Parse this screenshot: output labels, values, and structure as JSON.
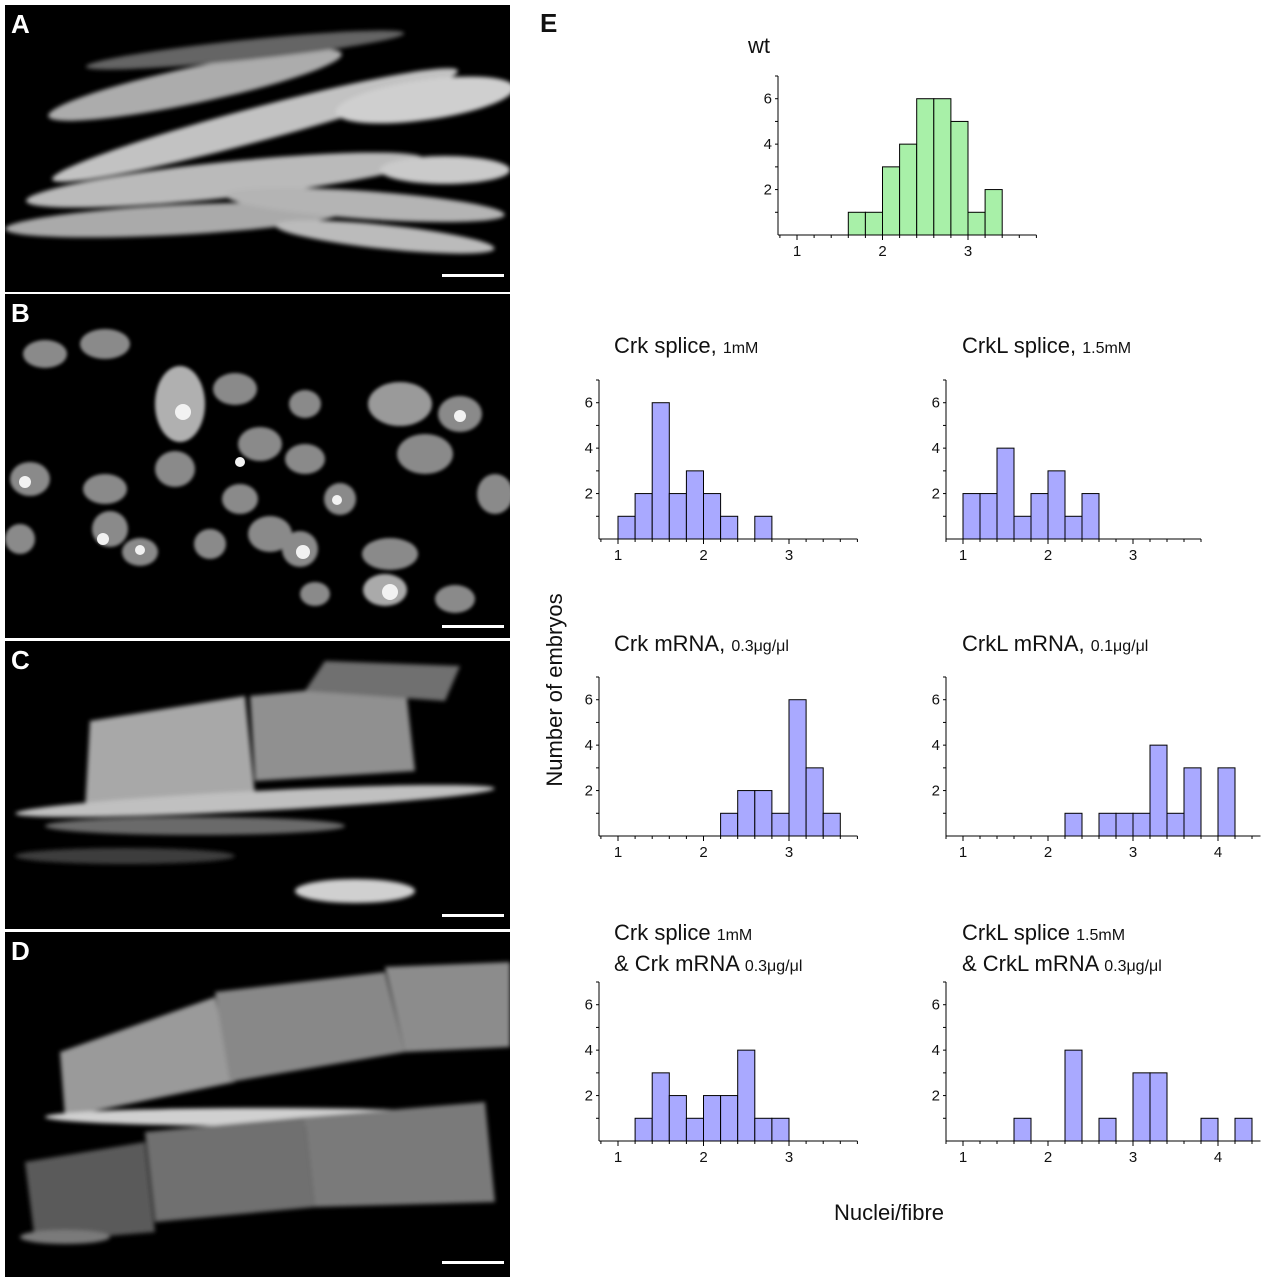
{
  "panels": [
    {
      "letter": "A"
    },
    {
      "letter": "B"
    },
    {
      "letter": "C"
    },
    {
      "letter": "D"
    },
    {
      "letter": "E"
    }
  ],
  "axis": {
    "xlabel": "Nuclei/fibre",
    "ylabel": "Number of embryos"
  },
  "colors": {
    "wt": "#a8f0a8",
    "treated": "#a9a9ff",
    "edge": "#000000"
  },
  "chart_data": [
    {
      "type": "bar",
      "id": "wt",
      "title": {
        "line1": "wt",
        "line1_suffix": "",
        "line2": "",
        "line2_suffix": ""
      },
      "bin_width": 0.2,
      "bins": [
        1.6,
        1.8,
        2.0,
        2.2,
        2.4,
        2.6,
        2.8,
        3.0,
        3.2
      ],
      "values": [
        1,
        1,
        3,
        4,
        6,
        6,
        5,
        1,
        2
      ],
      "xlim": [
        0.8,
        3.8
      ],
      "ylim": [
        0,
        7
      ],
      "xticks": [
        1,
        2,
        3
      ],
      "yticks": [
        2,
        4,
        6
      ],
      "color": "wt"
    },
    {
      "type": "bar",
      "id": "crk-splice",
      "title": {
        "line1": "Crk splice,",
        "line1_suffix": "1mM",
        "line2": "",
        "line2_suffix": ""
      },
      "bin_width": 0.2,
      "bins": [
        1.0,
        1.2,
        1.4,
        1.6,
        1.8,
        2.0,
        2.2,
        2.6
      ],
      "values": [
        1,
        2,
        6,
        2,
        3,
        2,
        1,
        1
      ],
      "xlim": [
        0.8,
        3.8
      ],
      "ylim": [
        0,
        7
      ],
      "xticks": [
        1,
        2,
        3
      ],
      "yticks": [
        2,
        4,
        6
      ],
      "color": "treated"
    },
    {
      "type": "bar",
      "id": "crkl-splice",
      "title": {
        "line1": "CrkL splice,",
        "line1_suffix": "1.5mM",
        "line2": "",
        "line2_suffix": ""
      },
      "bin_width": 0.2,
      "bins": [
        1.0,
        1.2,
        1.4,
        1.6,
        1.8,
        2.0,
        2.2,
        2.4
      ],
      "values": [
        2,
        2,
        4,
        1,
        2,
        3,
        1,
        2
      ],
      "xlim": [
        0.8,
        3.8
      ],
      "ylim": [
        0,
        7
      ],
      "xticks": [
        1,
        2,
        3
      ],
      "yticks": [
        2,
        4,
        6
      ],
      "color": "treated"
    },
    {
      "type": "bar",
      "id": "crk-mrna",
      "title": {
        "line1": "Crk mRNA,",
        "line1_suffix": "0.3μg/μl",
        "line2": "",
        "line2_suffix": ""
      },
      "bin_width": 0.2,
      "bins": [
        2.2,
        2.4,
        2.6,
        2.8,
        3.0,
        3.2,
        3.4
      ],
      "values": [
        1,
        2,
        2,
        1,
        6,
        3,
        1
      ],
      "xlim": [
        0.8,
        3.8
      ],
      "ylim": [
        0,
        7
      ],
      "xticks": [
        1,
        2,
        3
      ],
      "yticks": [
        2,
        4,
        6
      ],
      "color": "treated"
    },
    {
      "type": "bar",
      "id": "crkl-mrna",
      "title": {
        "line1": "CrkL mRNA,",
        "line1_suffix": "0.1μg/μl",
        "line2": "",
        "line2_suffix": ""
      },
      "bin_width": 0.2,
      "bins": [
        2.2,
        2.6,
        2.8,
        3.0,
        3.2,
        3.4,
        3.6,
        4.0
      ],
      "values": [
        1,
        1,
        1,
        1,
        4,
        1,
        3,
        3
      ],
      "xlim": [
        0.8,
        4.5
      ],
      "ylim": [
        0,
        7
      ],
      "xticks": [
        1,
        2,
        3,
        4
      ],
      "yticks": [
        2,
        4,
        6
      ],
      "color": "treated"
    },
    {
      "type": "bar",
      "id": "crk-rescue",
      "title": {
        "line1": "Crk splice",
        "line1_suffix": "1mM",
        "line2": "& Crk mRNA",
        "line2_suffix": "0.3μg/μl"
      },
      "bin_width": 0.2,
      "bins": [
        1.2,
        1.4,
        1.6,
        1.8,
        2.0,
        2.2,
        2.4,
        2.6,
        2.8
      ],
      "values": [
        1,
        3,
        2,
        1,
        2,
        2,
        4,
        1,
        1
      ],
      "xlim": [
        0.8,
        3.8
      ],
      "ylim": [
        0,
        7
      ],
      "xticks": [
        1,
        2,
        3
      ],
      "yticks": [
        2,
        4,
        6
      ],
      "color": "treated"
    },
    {
      "type": "bar",
      "id": "crkl-rescue",
      "title": {
        "line1": "CrkL splice",
        "line1_suffix": "1.5mM",
        "line2": "& CrkL mRNA",
        "line2_suffix": "0.3μg/μl"
      },
      "bin_width": 0.2,
      "bins": [
        1.6,
        2.2,
        2.6,
        3.0,
        3.2,
        3.8,
        4.2
      ],
      "values": [
        1,
        4,
        1,
        3,
        3,
        1,
        1
      ],
      "xlim": [
        0.8,
        4.5
      ],
      "ylim": [
        0,
        7
      ],
      "xticks": [
        1,
        2,
        3,
        4
      ],
      "yticks": [
        2,
        4,
        6
      ],
      "color": "treated"
    }
  ]
}
